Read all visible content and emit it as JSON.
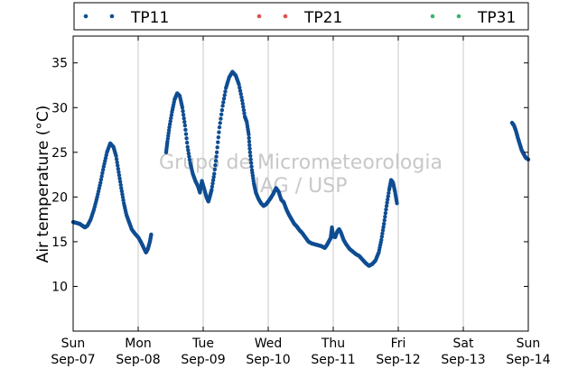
{
  "chart_data": {
    "type": "scatter",
    "title": "",
    "ylabel": "Air temperature (°C)",
    "xlabel": "",
    "watermark": [
      "Grupo de Micrometeorologia",
      "IAG / USP"
    ],
    "legend": {
      "placement": "top",
      "entries": [
        "TP11",
        "TP21",
        "TP31"
      ]
    },
    "grid": {
      "x": true,
      "y": false
    },
    "xlim_days": [
      0,
      7
    ],
    "ylim": [
      5,
      38
    ],
    "y_ticks": [
      10,
      15,
      20,
      25,
      30,
      35
    ],
    "x_ticks": [
      {
        "day": "Sun",
        "date": "Sep-07"
      },
      {
        "day": "Mon",
        "date": "Sep-08"
      },
      {
        "day": "Tue",
        "date": "Sep-09"
      },
      {
        "day": "Wed",
        "date": "Sep-10"
      },
      {
        "day": "Thu",
        "date": "Sep-11"
      },
      {
        "day": "Fri",
        "date": "Sep-12"
      },
      {
        "day": "Sat",
        "date": "Sep-13"
      },
      {
        "day": "Sun",
        "date": "Sep-14"
      }
    ],
    "series": [
      {
        "name": "TP11",
        "color": "#0f4d92",
        "points": [
          [
            0.0,
            17.2
          ],
          [
            0.05,
            17.1
          ],
          [
            0.1,
            17.0
          ],
          [
            0.14,
            16.8
          ],
          [
            0.18,
            16.6
          ],
          [
            0.22,
            16.8
          ],
          [
            0.27,
            17.5
          ],
          [
            0.32,
            18.6
          ],
          [
            0.37,
            20.0
          ],
          [
            0.42,
            21.6
          ],
          [
            0.47,
            23.4
          ],
          [
            0.52,
            25.0
          ],
          [
            0.57,
            26.0
          ],
          [
            0.62,
            25.6
          ],
          [
            0.66,
            24.6
          ],
          [
            0.7,
            22.8
          ],
          [
            0.74,
            21.0
          ],
          [
            0.78,
            19.3
          ],
          [
            0.82,
            18.0
          ],
          [
            0.86,
            17.2
          ],
          [
            0.9,
            16.4
          ],
          [
            0.95,
            15.9
          ],
          [
            1.0,
            15.5
          ],
          [
            1.04,
            15.0
          ],
          [
            1.08,
            14.4
          ],
          [
            1.12,
            13.8
          ],
          [
            1.15,
            14.2
          ],
          [
            1.18,
            15.0
          ],
          [
            1.2,
            15.8
          ],
          [
            1.43,
            25.0
          ],
          [
            1.45,
            26.2
          ],
          [
            1.48,
            27.8
          ],
          [
            1.52,
            29.5
          ],
          [
            1.56,
            30.9
          ],
          [
            1.6,
            31.6
          ],
          [
            1.64,
            31.3
          ],
          [
            1.68,
            30.0
          ],
          [
            1.72,
            28.0
          ],
          [
            1.76,
            25.6
          ],
          [
            1.8,
            23.8
          ],
          [
            1.84,
            22.6
          ],
          [
            1.88,
            21.8
          ],
          [
            1.92,
            21.2
          ],
          [
            1.95,
            20.5
          ],
          [
            1.98,
            21.8
          ],
          [
            2.02,
            20.8
          ],
          [
            2.05,
            20.0
          ],
          [
            2.08,
            19.5
          ],
          [
            2.1,
            20.0
          ],
          [
            2.13,
            20.8
          ],
          [
            2.17,
            22.6
          ],
          [
            2.21,
            25.0
          ],
          [
            2.25,
            27.8
          ],
          [
            2.3,
            30.2
          ],
          [
            2.35,
            32.2
          ],
          [
            2.4,
            33.4
          ],
          [
            2.45,
            34.0
          ],
          [
            2.5,
            33.6
          ],
          [
            2.55,
            32.6
          ],
          [
            2.6,
            30.8
          ],
          [
            2.64,
            29.0
          ],
          [
            2.67,
            28.4
          ],
          [
            2.7,
            27.0
          ],
          [
            2.72,
            25.0
          ],
          [
            2.75,
            23.0
          ],
          [
            2.78,
            21.5
          ],
          [
            2.81,
            20.5
          ],
          [
            2.85,
            19.8
          ],
          [
            2.89,
            19.3
          ],
          [
            2.93,
            19.0
          ],
          [
            2.97,
            19.2
          ],
          [
            3.0,
            19.5
          ],
          [
            3.04,
            19.9
          ],
          [
            3.08,
            20.4
          ],
          [
            3.12,
            21.0
          ],
          [
            3.16,
            20.6
          ],
          [
            3.2,
            19.7
          ],
          [
            3.24,
            19.4
          ],
          [
            3.28,
            18.6
          ],
          [
            3.32,
            18.0
          ],
          [
            3.36,
            17.5
          ],
          [
            3.4,
            17.0
          ],
          [
            3.44,
            16.7
          ],
          [
            3.48,
            16.3
          ],
          [
            3.52,
            16.0
          ],
          [
            3.57,
            15.5
          ],
          [
            3.62,
            15.0
          ],
          [
            3.67,
            14.8
          ],
          [
            3.72,
            14.7
          ],
          [
            3.77,
            14.6
          ],
          [
            3.82,
            14.5
          ],
          [
            3.87,
            14.3
          ],
          [
            3.9,
            14.6
          ],
          [
            3.93,
            15.0
          ],
          [
            3.96,
            15.4
          ],
          [
            3.98,
            16.6
          ],
          [
            4.0,
            15.6
          ],
          [
            4.03,
            15.5
          ],
          [
            4.06,
            16.1
          ],
          [
            4.09,
            16.4
          ],
          [
            4.12,
            16.0
          ],
          [
            4.16,
            15.2
          ],
          [
            4.2,
            14.7
          ],
          [
            4.25,
            14.2
          ],
          [
            4.3,
            13.9
          ],
          [
            4.35,
            13.6
          ],
          [
            4.4,
            13.4
          ],
          [
            4.45,
            13.0
          ],
          [
            4.5,
            12.6
          ],
          [
            4.55,
            12.3
          ],
          [
            4.6,
            12.5
          ],
          [
            4.65,
            12.9
          ],
          [
            4.7,
            13.8
          ],
          [
            4.74,
            15.2
          ],
          [
            4.78,
            17.0
          ],
          [
            4.82,
            19.0
          ],
          [
            4.86,
            20.8
          ],
          [
            4.89,
            21.9
          ],
          [
            4.92,
            21.6
          ],
          [
            4.95,
            20.6
          ],
          [
            4.98,
            19.3
          ],
          [
            6.75,
            28.3
          ],
          [
            6.78,
            28.0
          ],
          [
            6.81,
            27.4
          ],
          [
            6.84,
            26.6
          ],
          [
            6.87,
            25.9
          ],
          [
            6.9,
            25.2
          ],
          [
            6.93,
            24.8
          ],
          [
            6.96,
            24.4
          ],
          [
            7.0,
            24.2
          ]
        ]
      },
      {
        "name": "TP21",
        "color": "#d9534f",
        "points": []
      },
      {
        "name": "TP31",
        "color": "#3cb371",
        "points": []
      }
    ]
  }
}
